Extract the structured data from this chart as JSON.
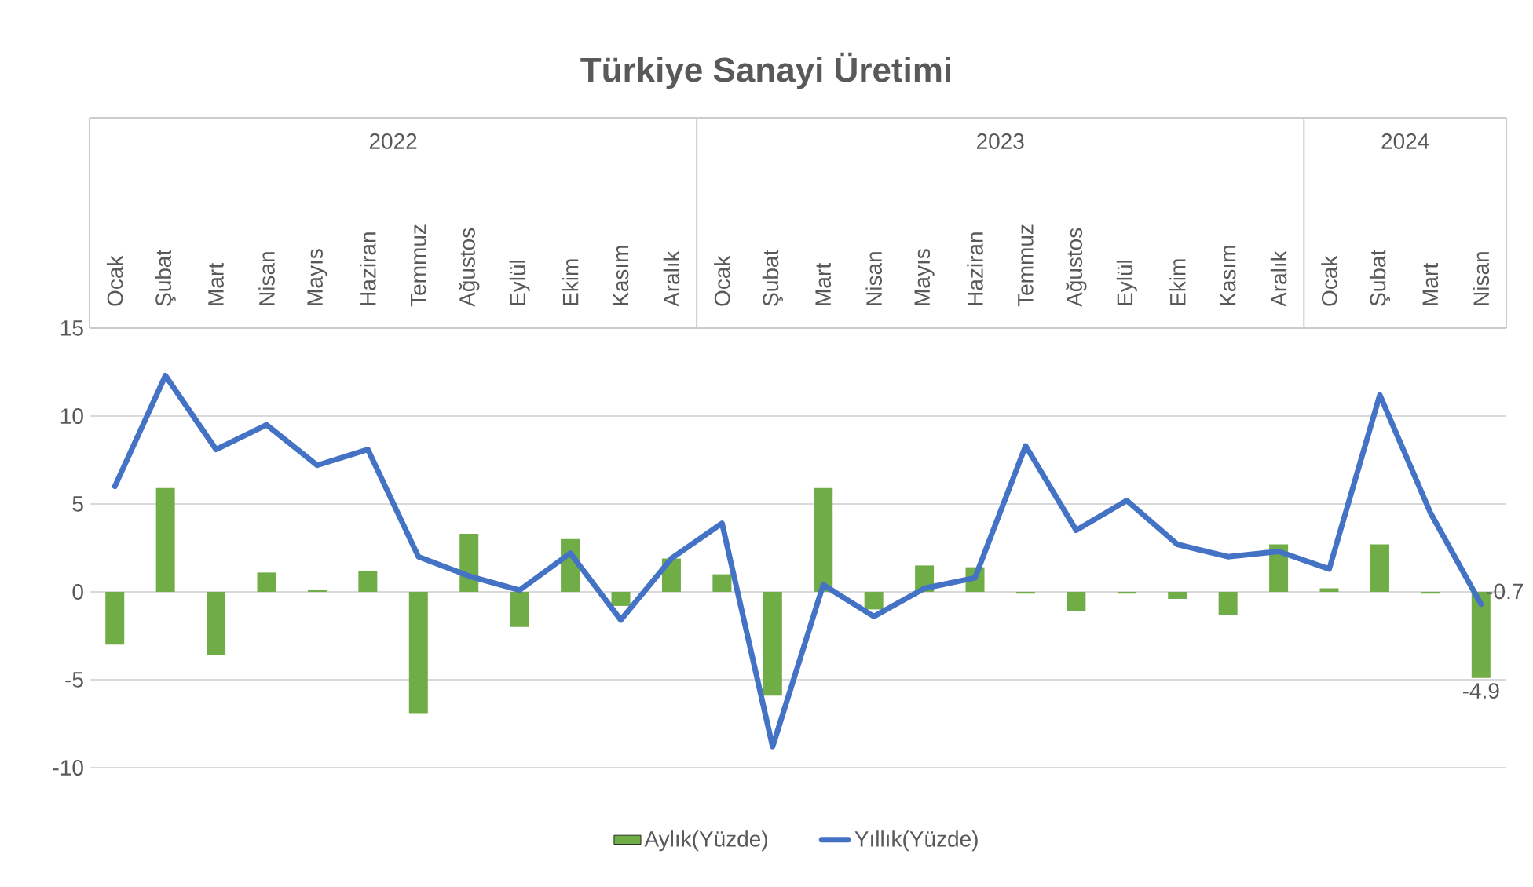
{
  "chart_data": {
    "type": "bar",
    "title": "Türkiye Sanayi Üretimi",
    "categories": [
      "Ocak",
      "Şubat",
      "Mart",
      "Nisan",
      "Mayıs",
      "Haziran",
      "Temmuz",
      "Ağustos",
      "Eylül",
      "Ekim",
      "Kasım",
      "Aralık",
      "Ocak",
      "Şubat",
      "Mart",
      "Nisan",
      "Mayıs",
      "Haziran",
      "Temmuz",
      "Ağustos",
      "Eylül",
      "Ekim",
      "Kasım",
      "Aralık",
      "Ocak",
      "Şubat",
      "Mart",
      "Nisan"
    ],
    "annotations": [
      "2022",
      "2023",
      "2024"
    ],
    "ylim": [
      -10,
      15
    ],
    "yticks": [
      -10,
      -5,
      0,
      5,
      10,
      15
    ],
    "grid": "y",
    "legend": "bottom",
    "series": [
      {
        "name": "Aylık(Yüzde)",
        "color": "#70ad47",
        "values": [
          -3.0,
          5.9,
          -3.6,
          1.1,
          0.1,
          1.2,
          -6.9,
          3.3,
          -2.0,
          3.0,
          -0.8,
          1.9,
          1.0,
          -5.9,
          5.9,
          -1.0,
          1.5,
          1.4,
          -0.1,
          -1.1,
          -0.1,
          -0.4,
          -1.3,
          2.7,
          0.2,
          2.7,
          -0.1,
          -4.9
        ],
        "value_labels": [
          null,
          null,
          null,
          null,
          null,
          null,
          null,
          null,
          null,
          null,
          null,
          null,
          null,
          null,
          null,
          null,
          null,
          null,
          null,
          null,
          null,
          null,
          null,
          null,
          null,
          null,
          null,
          "-4.9"
        ]
      },
      {
        "name": "Yıllık(Yüzde)",
        "type": "line",
        "color": "#4472c4",
        "values": [
          6.0,
          12.3,
          8.1,
          9.5,
          7.2,
          8.1,
          2.0,
          0.9,
          0.1,
          2.2,
          -1.6,
          1.9,
          3.9,
          -8.8,
          0.4,
          -1.4,
          0.2,
          0.8,
          8.3,
          3.5,
          5.2,
          2.7,
          2.0,
          2.3,
          1.3,
          11.2,
          4.5,
          -0.7
        ],
        "value_labels": [
          null,
          null,
          null,
          null,
          null,
          null,
          null,
          null,
          null,
          null,
          null,
          null,
          null,
          null,
          null,
          null,
          null,
          null,
          null,
          null,
          null,
          null,
          null,
          null,
          null,
          null,
          null,
          "-0.7"
        ]
      }
    ]
  }
}
